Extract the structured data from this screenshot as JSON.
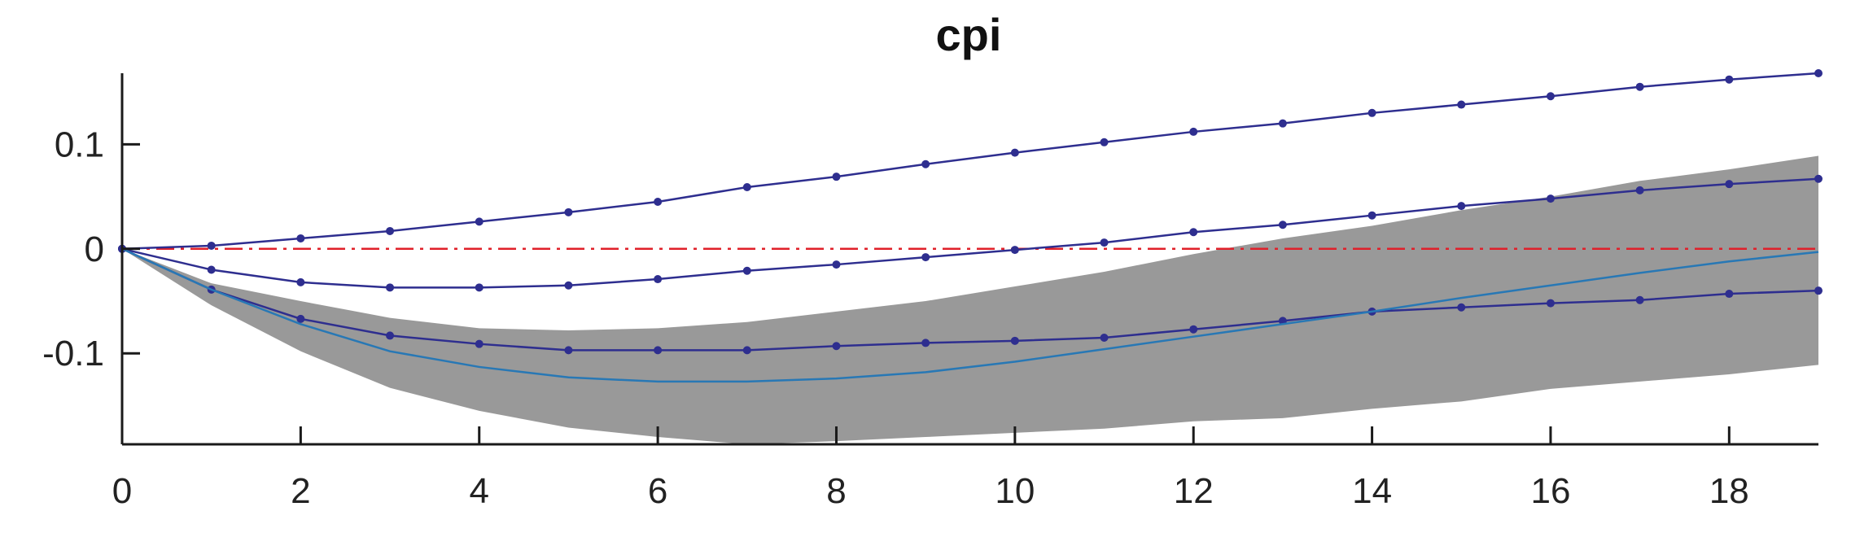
{
  "chart_data": {
    "type": "line",
    "title": "cpi",
    "xlabel": "",
    "ylabel": "",
    "xlim": [
      0,
      19
    ],
    "ylim": [
      -0.187,
      0.168
    ],
    "x_ticks": [
      0,
      2,
      4,
      6,
      8,
      10,
      12,
      14,
      16,
      18
    ],
    "y_ticks": [
      0.1,
      0,
      -0.1
    ],
    "y_tick_labels": [
      "0.1",
      "0",
      "-0.1"
    ],
    "x": [
      0,
      1,
      2,
      3,
      4,
      5,
      6,
      7,
      8,
      9,
      10,
      11,
      12,
      13,
      14,
      15,
      16,
      17,
      18,
      19
    ],
    "band": {
      "color": "#999999",
      "upper": [
        0,
        -0.033,
        -0.05,
        -0.066,
        -0.076,
        -0.078,
        -0.076,
        -0.07,
        -0.06,
        -0.05,
        -0.036,
        -0.022,
        -0.005,
        0.01,
        0.022,
        0.037,
        0.05,
        0.065,
        0.076,
        0.089
      ],
      "lower": [
        0,
        -0.054,
        -0.098,
        -0.133,
        -0.155,
        -0.171,
        -0.18,
        -0.187,
        -0.184,
        -0.18,
        -0.176,
        -0.172,
        -0.165,
        -0.162,
        -0.153,
        -0.146,
        -0.134,
        -0.127,
        -0.12,
        -0.111
      ]
    },
    "series": [
      {
        "color": "#2e2e8f",
        "markers": true,
        "values": [
          0,
          0.003,
          0.01,
          0.017,
          0.026,
          0.035,
          0.045,
          0.059,
          0.069,
          0.081,
          0.092,
          0.102,
          0.112,
          0.12,
          0.13,
          0.138,
          0.146,
          0.155,
          0.162,
          0.168
        ]
      },
      {
        "color": "#2e2e8f",
        "markers": true,
        "values": [
          0,
          -0.02,
          -0.032,
          -0.037,
          -0.037,
          -0.035,
          -0.029,
          -0.021,
          -0.015,
          -0.008,
          -0.001,
          0.006,
          0.016,
          0.023,
          0.032,
          0.041,
          0.048,
          0.056,
          0.062,
          0.067
        ]
      },
      {
        "color": "#2e2e8f",
        "markers": true,
        "values": [
          0,
          -0.039,
          -0.067,
          -0.083,
          -0.091,
          -0.097,
          -0.097,
          -0.097,
          -0.093,
          -0.09,
          -0.088,
          -0.085,
          -0.077,
          -0.069,
          -0.06,
          -0.056,
          -0.052,
          -0.049,
          -0.043,
          -0.04
        ]
      },
      {
        "color": "#2878b5",
        "markers": false,
        "values": [
          0,
          -0.039,
          -0.072,
          -0.098,
          -0.113,
          -0.123,
          -0.127,
          -0.127,
          -0.124,
          -0.118,
          -0.108,
          -0.096,
          -0.084,
          -0.072,
          -0.06,
          -0.047,
          -0.035,
          -0.023,
          -0.012,
          -0.003
        ]
      }
    ],
    "reference_line": {
      "y": 0,
      "color": "#e0202a",
      "style": "dash-dot"
    },
    "grid": false,
    "legend": "none"
  }
}
